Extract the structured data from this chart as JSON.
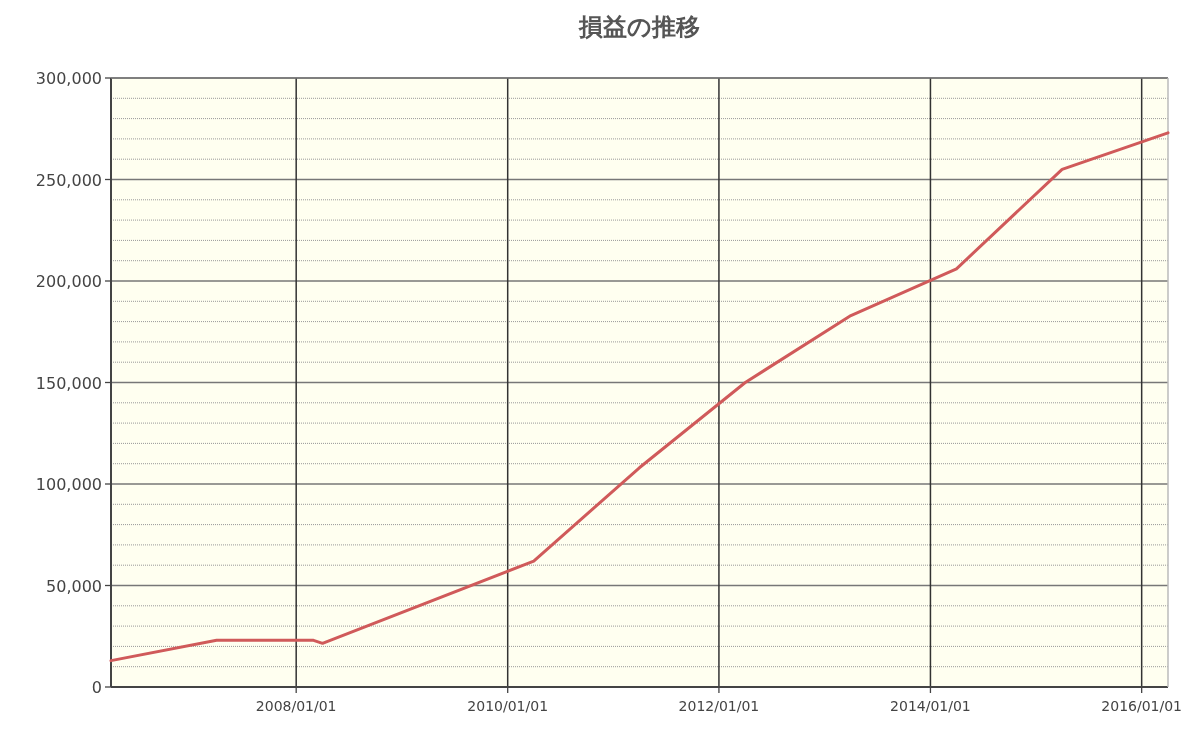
{
  "chart_data": {
    "type": "line",
    "title": "損益の推移",
    "x": [
      "2006-04-01",
      "2007-04-01",
      "2008-03-01",
      "2008-04-01",
      "2010-04-01",
      "2011-04-01",
      "2012-04-01",
      "2013-04-01",
      "2014-04-01",
      "2015-04-01",
      "2016-04-01"
    ],
    "series": [
      {
        "color": "#d05a5a",
        "values": [
          13000,
          23000,
          23000,
          21500,
          62000,
          108000,
          150000,
          183000,
          206000,
          255000,
          273000
        ]
      }
    ],
    "xlim": [
      "2006-04-01",
      "2016-04-01"
    ],
    "xticks": [
      {
        "value": "2008-01-01",
        "label": "2008/01/01"
      },
      {
        "value": "2010-01-01",
        "label": "2010/01/01"
      },
      {
        "value": "2012-01-01",
        "label": "2012/01/01"
      },
      {
        "value": "2014-01-01",
        "label": "2014/01/01"
      },
      {
        "value": "2016-01-01",
        "label": "2016/01/01"
      }
    ],
    "ylim": [
      0,
      300000
    ],
    "yticks": [
      {
        "value": 0,
        "label": "0"
      },
      {
        "value": 50000,
        "label": "50,000"
      },
      {
        "value": 100000,
        "label": "100,000"
      },
      {
        "value": 150000,
        "label": "150,000"
      },
      {
        "value": 200000,
        "label": "200,000"
      },
      {
        "value": 250000,
        "label": "250,000"
      },
      {
        "value": 300000,
        "label": "300,000"
      }
    ],
    "grid": true,
    "marker": "none",
    "line_style": "solid"
  }
}
